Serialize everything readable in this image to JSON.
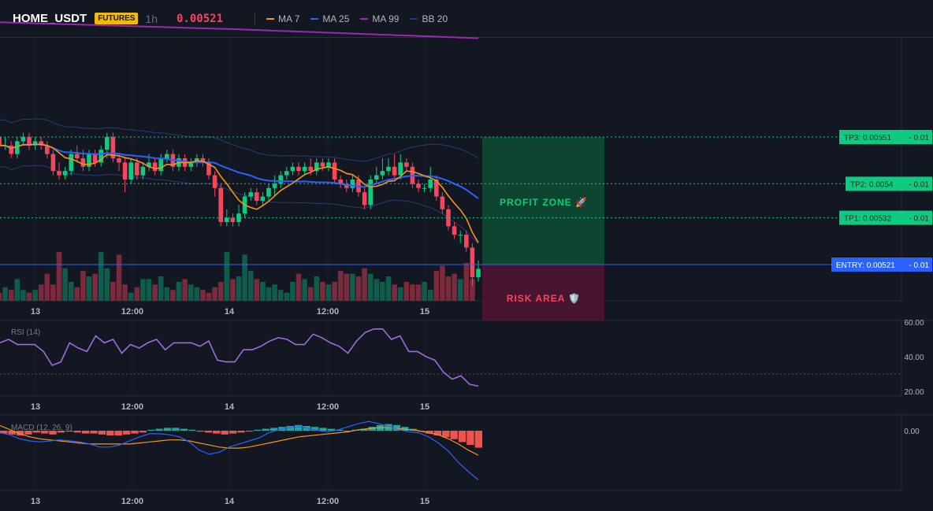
{
  "header": {
    "symbol": "HOME_USDT",
    "badge": "FUTURES",
    "timeframe": "1h",
    "price": "0.00521",
    "legend": [
      {
        "label": "MA 7",
        "color": "#f7931a"
      },
      {
        "label": "MA 25",
        "color": "#2962ff"
      },
      {
        "label": "MA 99",
        "color": "#9c27b0"
      },
      {
        "label": "BB 20",
        "color": "#1e3a8a"
      }
    ]
  },
  "chart_data": [
    {
      "type": "candlestick",
      "title": "HOME_USDT 1h",
      "x_tick_labels": [
        "13",
        "12:00",
        "14",
        "12:00",
        "15"
      ],
      "series": [
        {
          "name": "MA 7",
          "color": "#f7931a"
        },
        {
          "name": "MA 25",
          "color": "#2962ff"
        },
        {
          "name": "MA 99",
          "color": "#9c27b0"
        },
        {
          "name": "BB 20",
          "color": "#1e3a8a"
        }
      ],
      "levels": [
        {
          "label": "TP3: 0.00551",
          "suffix": "- 0.01",
          "price": 0.00551,
          "color": "#0ecb81"
        },
        {
          "label": "TP2: 0.0054",
          "suffix": "- 0.01",
          "price": 0.0054,
          "color": "#0ecb81"
        },
        {
          "label": "TP1: 0.00532",
          "suffix": "- 0.01",
          "price": 0.00532,
          "color": "#0ecb81"
        },
        {
          "label": "ENTRY: 0.00521",
          "suffix": "- 0.01",
          "price": 0.00521,
          "color": "#2962ff"
        }
      ],
      "zones": {
        "profit": "PROFIT ZONE 🚀",
        "risk": "RISK AREA 🛡️"
      },
      "candles": [
        [
          0.00551,
          0.00549,
          0.00552,
          0.00548
        ],
        [
          0.00549,
          0.00549,
          0.00551,
          0.00548
        ],
        [
          0.00549,
          0.00547,
          0.0055,
          0.00546
        ],
        [
          0.00547,
          0.0055,
          0.00551,
          0.00546
        ],
        [
          0.0055,
          0.00551,
          0.00552,
          0.00549
        ],
        [
          0.00551,
          0.00549,
          0.00552,
          0.00548
        ],
        [
          0.00549,
          0.0055,
          0.00551,
          0.00548
        ],
        [
          0.0055,
          0.00549,
          0.00551,
          0.00548
        ],
        [
          0.00549,
          0.00547,
          0.0055,
          0.00546
        ],
        [
          0.00547,
          0.00543,
          0.00548,
          0.00542
        ],
        [
          0.00543,
          0.00542,
          0.00545,
          0.00541
        ],
        [
          0.00542,
          0.00543,
          0.00544,
          0.00541
        ],
        [
          0.00543,
          0.00547,
          0.00548,
          0.00542
        ],
        [
          0.00547,
          0.00546,
          0.00549,
          0.00545
        ],
        [
          0.00546,
          0.00544,
          0.00548,
          0.00543
        ],
        [
          0.00544,
          0.00547,
          0.00548,
          0.00543
        ],
        [
          0.00547,
          0.00545,
          0.00548,
          0.00544
        ],
        [
          0.00545,
          0.00548,
          0.00549,
          0.00544
        ],
        [
          0.00548,
          0.00551,
          0.00552,
          0.00546
        ],
        [
          0.00551,
          0.00546,
          0.00552,
          0.00545
        ],
        [
          0.00546,
          0.00545,
          0.00547,
          0.00543
        ],
        [
          0.00545,
          0.00541,
          0.00546,
          0.00538
        ],
        [
          0.00541,
          0.00545,
          0.00546,
          0.0054
        ],
        [
          0.00545,
          0.00542,
          0.00546,
          0.00541
        ],
        [
          0.00542,
          0.00544,
          0.00545,
          0.00541
        ],
        [
          0.00544,
          0.00545,
          0.00547,
          0.00543
        ],
        [
          0.00545,
          0.00543,
          0.00546,
          0.00542
        ],
        [
          0.00543,
          0.00546,
          0.00547,
          0.00542
        ],
        [
          0.00546,
          0.00547,
          0.00548,
          0.00545
        ],
        [
          0.00547,
          0.00544,
          0.00548,
          0.00543
        ],
        [
          0.00544,
          0.00546,
          0.00547,
          0.00543
        ],
        [
          0.00546,
          0.00544,
          0.00547,
          0.00543
        ],
        [
          0.00544,
          0.00545,
          0.00546,
          0.00543
        ],
        [
          0.00545,
          0.00546,
          0.00547,
          0.00544
        ],
        [
          0.00546,
          0.00545,
          0.00547,
          0.00544
        ],
        [
          0.00545,
          0.00542,
          0.00546,
          0.00541
        ],
        [
          0.00542,
          0.00539,
          0.00543,
          0.00537
        ],
        [
          0.00539,
          0.00531,
          0.0054,
          0.0053
        ],
        [
          0.00531,
          0.00532,
          0.00534,
          0.0053
        ],
        [
          0.00532,
          0.00531,
          0.00533,
          0.0053
        ],
        [
          0.00531,
          0.00533,
          0.00535,
          0.0053
        ],
        [
          0.00533,
          0.00537,
          0.00538,
          0.00532
        ],
        [
          0.00537,
          0.00538,
          0.00539,
          0.00536
        ],
        [
          0.00538,
          0.00536,
          0.00539,
          0.00535
        ],
        [
          0.00536,
          0.00537,
          0.00538,
          0.00535
        ],
        [
          0.00537,
          0.00539,
          0.0054,
          0.00536
        ],
        [
          0.00539,
          0.0054,
          0.00542,
          0.00537
        ],
        [
          0.0054,
          0.00542,
          0.00543,
          0.00539
        ],
        [
          0.00542,
          0.00543,
          0.00544,
          0.00541
        ],
        [
          0.00543,
          0.00544,
          0.00545,
          0.00542
        ],
        [
          0.00544,
          0.00543,
          0.00545,
          0.00542
        ],
        [
          0.00543,
          0.00544,
          0.00545,
          0.00542
        ],
        [
          0.00544,
          0.00543,
          0.00546,
          0.00542
        ],
        [
          0.00543,
          0.00545,
          0.00546,
          0.00542
        ],
        [
          0.00545,
          0.00544,
          0.00546,
          0.00543
        ],
        [
          0.00544,
          0.00545,
          0.00546,
          0.00543
        ],
        [
          0.00545,
          0.00541,
          0.00546,
          0.0054
        ],
        [
          0.00541,
          0.0054,
          0.00542,
          0.00539
        ],
        [
          0.0054,
          0.00539,
          0.00541,
          0.00538
        ],
        [
          0.00539,
          0.00541,
          0.00542,
          0.00538
        ],
        [
          0.00541,
          0.00538,
          0.00542,
          0.00537
        ],
        [
          0.00538,
          0.00535,
          0.00539,
          0.00534
        ],
        [
          0.00535,
          0.00541,
          0.00542,
          0.00534
        ],
        [
          0.00541,
          0.00542,
          0.00544,
          0.0054
        ],
        [
          0.00542,
          0.00543,
          0.00546,
          0.00541
        ],
        [
          0.00543,
          0.00544,
          0.00546,
          0.00542
        ],
        [
          0.00544,
          0.00542,
          0.00547,
          0.00541
        ],
        [
          0.00542,
          0.00545,
          0.00547,
          0.00541
        ],
        [
          0.00545,
          0.00544,
          0.00546,
          0.00543
        ],
        [
          0.00544,
          0.0054,
          0.00545,
          0.00539
        ],
        [
          0.0054,
          0.00539,
          0.00541,
          0.00538
        ],
        [
          0.00539,
          0.00539,
          0.0054,
          0.00538
        ],
        [
          0.00539,
          0.00541,
          0.00544,
          0.00538
        ],
        [
          0.00541,
          0.00537,
          0.00542,
          0.00536
        ],
        [
          0.00537,
          0.00534,
          0.00538,
          0.00533
        ],
        [
          0.00534,
          0.0053,
          0.00535,
          0.00529
        ],
        [
          0.0053,
          0.00528,
          0.00531,
          0.00527
        ],
        [
          0.00528,
          0.00528,
          0.00529,
          0.00526
        ],
        [
          0.00528,
          0.00525,
          0.00529,
          0.00524
        ],
        [
          0.00525,
          0.00518,
          0.00526,
          0.00516
        ],
        [
          0.00518,
          0.0052,
          0.00522,
          0.00517
        ]
      ],
      "volume": [
        3,
        5,
        4,
        8,
        4,
        3,
        4,
        6,
        10,
        6,
        18,
        12,
        7,
        5,
        11,
        9,
        10,
        18,
        12,
        7,
        17,
        6,
        3,
        5,
        8,
        8,
        6,
        9,
        5,
        4,
        7,
        8,
        6,
        5,
        4,
        3,
        5,
        7,
        18,
        8,
        9,
        17,
        11,
        8,
        7,
        5,
        6,
        4,
        3,
        7,
        10,
        8,
        5,
        9,
        7,
        6,
        7,
        11,
        10,
        10,
        9,
        12,
        10,
        8,
        7,
        9,
        6,
        5,
        7,
        6,
        6,
        7,
        4,
        11,
        13,
        9,
        10,
        8,
        14,
        8
      ],
      "rsi": {
        "label": "RSI (14)",
        "ticks": [
          "60.00",
          "40.00",
          "20.00"
        ],
        "values": [
          48,
          50,
          47,
          47,
          47,
          43,
          35,
          37,
          48,
          45,
          43,
          52,
          48,
          50,
          42,
          47,
          45,
          48,
          50,
          44,
          48,
          48,
          48,
          46,
          49,
          38,
          37,
          37,
          44,
          44,
          46,
          49,
          51,
          50,
          47,
          47,
          53,
          51,
          48,
          46,
          42,
          49,
          54,
          56,
          56,
          50,
          52,
          43,
          43,
          40,
          38,
          31,
          27,
          29,
          24,
          23
        ]
      },
      "macd": {
        "label": "MACD (12, 26, 9)",
        "ticks": [
          "0.00"
        ],
        "histogram": [
          -0.3,
          -0.4,
          -0.5,
          -0.4,
          -0.2,
          -0.3,
          -0.4,
          -0.2,
          -0.1,
          -0.2,
          -0.3,
          -0.3,
          -0.4,
          -0.5,
          -0.5,
          -0.4,
          -0.3,
          -0.2,
          0.1,
          0.2,
          0.3,
          0.3,
          0.2,
          0.1,
          -0.1,
          -0.2,
          -0.3,
          -0.4,
          -0.3,
          -0.2,
          -0.1,
          0.1,
          0.2,
          0.3,
          0.4,
          0.5,
          0.6,
          0.5,
          0.4,
          0.3,
          0.2,
          0.1,
          -0.1,
          0.1,
          0.2,
          0.4,
          0.6,
          0.7,
          0.6,
          0.4,
          0.2,
          -0.1,
          -0.3,
          -0.5,
          -0.7,
          -0.9,
          -1.2,
          -1.5,
          -1.8
        ],
        "macd_line": [
          -0.2,
          -0.4,
          -0.8,
          -1.0,
          -1.1,
          -1.0,
          -0.9,
          -1.0,
          -1.1,
          -1.3,
          -1.6,
          -1.6,
          -1.4,
          -1.0,
          -0.6,
          -0.3,
          -0.3,
          -0.4,
          -0.6,
          -1.1,
          -1.9,
          -2.3,
          -2.1,
          -1.6,
          -1.3,
          -1.0,
          -0.7,
          -0.2,
          0.1,
          0.3,
          0.4,
          0.2,
          0.0,
          -0.1,
          0.1,
          0.4,
          0.7,
          0.9,
          0.7,
          0.4,
          0.1,
          -0.1,
          -0.2,
          -0.6,
          -1.2,
          -2.0,
          -3.1,
          -4.0,
          -4.8
        ],
        "signal_line": [
          0.5,
          0.1,
          -0.3,
          -0.6,
          -0.8,
          -0.9,
          -1.0,
          -1.1,
          -1.2,
          -1.3,
          -1.3,
          -1.3,
          -1.3,
          -1.3,
          -1.2,
          -1.1,
          -1.0,
          -0.9,
          -0.9,
          -1.0,
          -1.2,
          -1.4,
          -1.6,
          -1.7,
          -1.7,
          -1.6,
          -1.4,
          -1.2,
          -1.0,
          -0.8,
          -0.6,
          -0.5,
          -0.4,
          -0.3,
          -0.2,
          -0.1,
          0.1,
          0.2,
          0.3,
          0.3,
          0.2,
          0.1,
          0.0,
          -0.2,
          -0.4,
          -0.8,
          -1.3,
          -1.9,
          -2.4
        ]
      }
    }
  ]
}
